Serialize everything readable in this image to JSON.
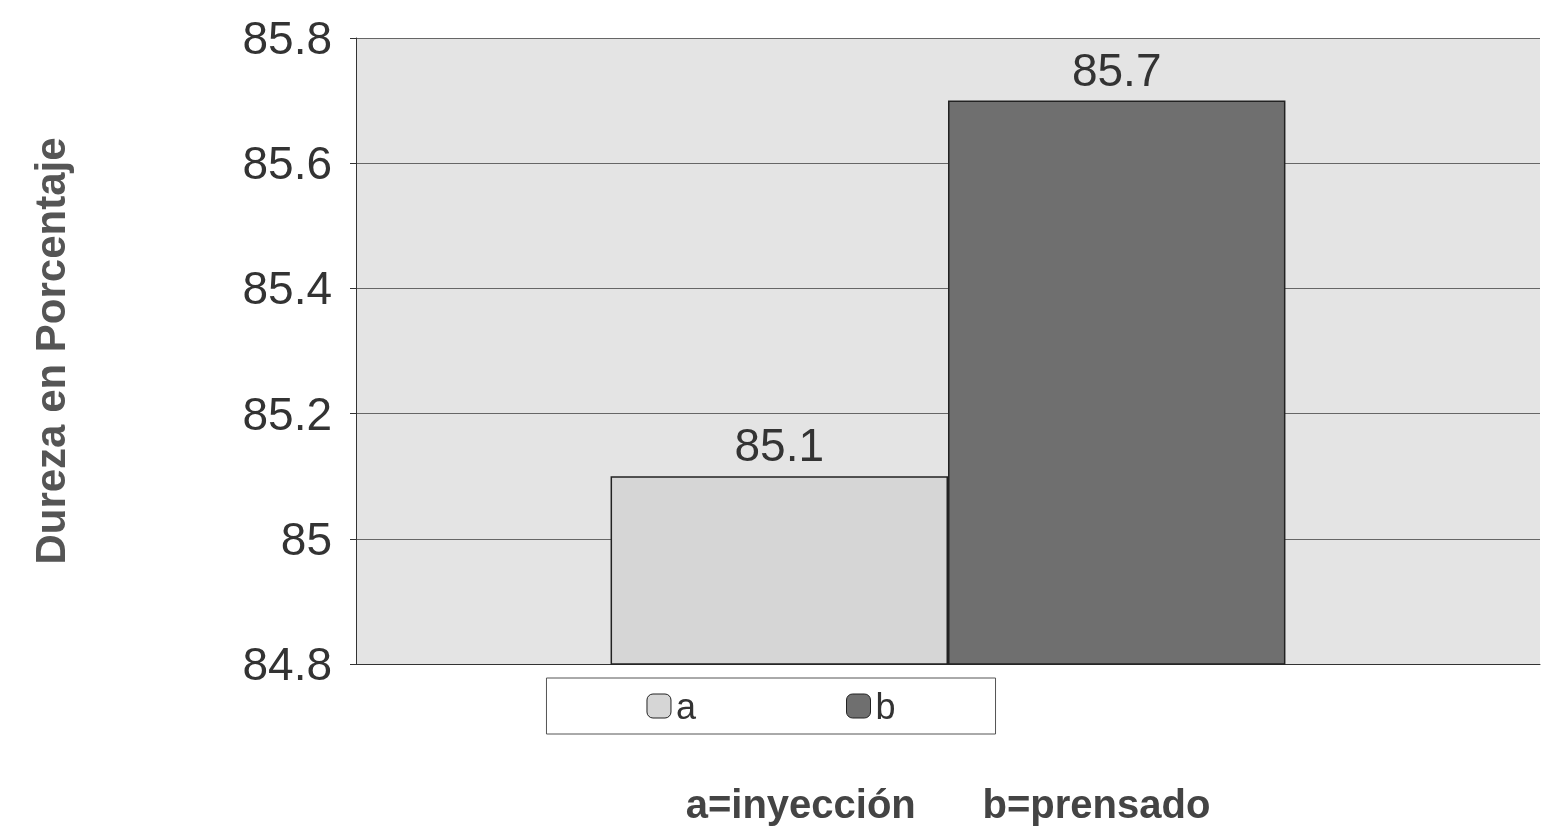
{
  "chart_data": {
    "type": "bar",
    "ylabel": "Dureza en Porcentaje",
    "xlabel": "a=inyección      b=prensado",
    "categories": [
      null
    ],
    "series": [
      {
        "name": "a",
        "color": "#d6d6d6",
        "values": [
          85.1
        ]
      },
      {
        "name": "b",
        "color": "#6f6f6f",
        "values": [
          85.7
        ]
      }
    ],
    "ylim": [
      84.8,
      85.8
    ],
    "yticks": [
      84.8,
      85,
      85.2,
      85.4,
      85.6,
      85.8
    ],
    "grid": "y",
    "legend": "bottom",
    "data_labels": true
  }
}
